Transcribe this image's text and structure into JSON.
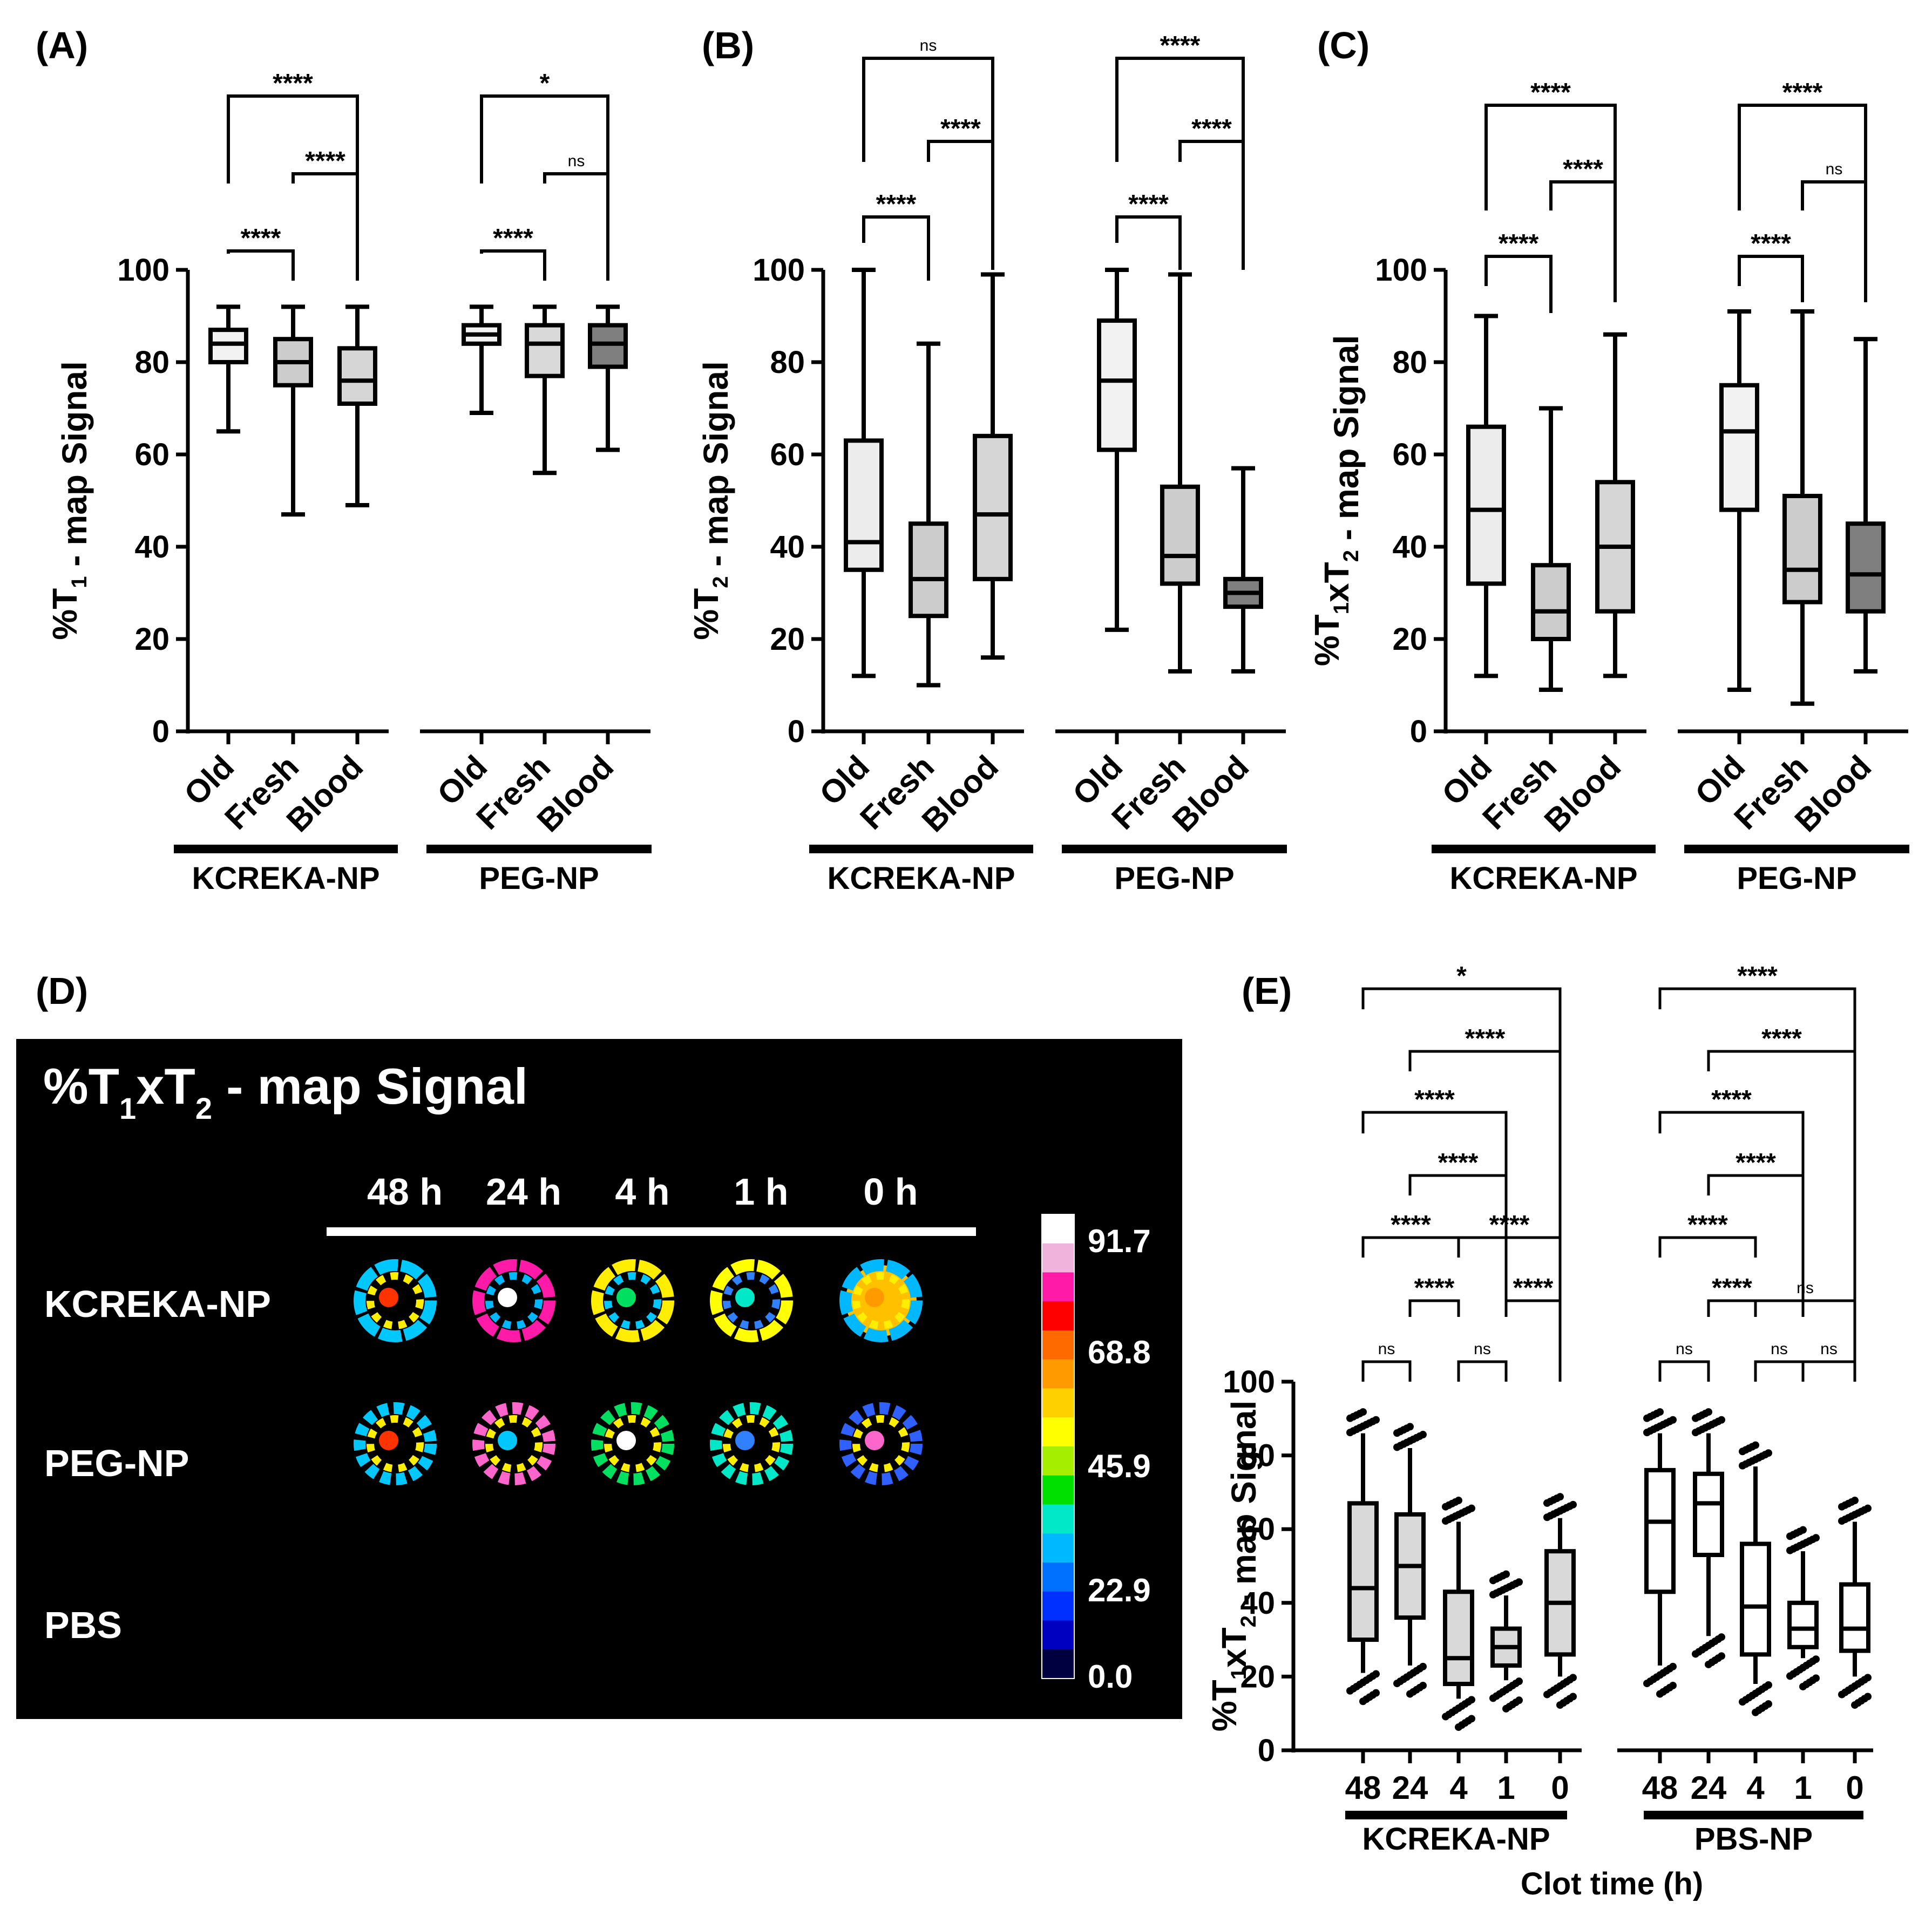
{
  "chart_data": [
    {
      "panel": "(A)",
      "type": "box",
      "ylabel": "%T1 - map Signal",
      "ylim": [
        0,
        100
      ],
      "yticks": [
        0,
        20,
        40,
        60,
        80,
        100
      ],
      "groups": [
        "KCREKA-NP",
        "PEG-NP"
      ],
      "categories": [
        "Old",
        "Fresh",
        "Blood"
      ],
      "boxes": [
        {
          "group": "KCREKA-NP",
          "category": "Old",
          "min": 65,
          "q1": 80,
          "median": 84,
          "q3": 87,
          "max": 92,
          "fill": "#f2f2f2"
        },
        {
          "group": "KCREKA-NP",
          "category": "Fresh",
          "min": 47,
          "q1": 75,
          "median": 80,
          "q3": 85,
          "max": 92,
          "fill": "#cccccc"
        },
        {
          "group": "KCREKA-NP",
          "category": "Blood",
          "min": 49,
          "q1": 71,
          "median": 76,
          "q3": 83,
          "max": 92,
          "fill": "#d6d6d6"
        },
        {
          "group": "PEG-NP",
          "category": "Old",
          "min": 69,
          "q1": 84,
          "median": 86,
          "q3": 88,
          "max": 92,
          "fill": "#f2f2f2"
        },
        {
          "group": "PEG-NP",
          "category": "Fresh",
          "min": 56,
          "q1": 77,
          "median": 84,
          "q3": 88,
          "max": 92,
          "fill": "#d9d9d9"
        },
        {
          "group": "PEG-NP",
          "category": "Blood",
          "min": 61,
          "q1": 79,
          "median": 84,
          "q3": 88,
          "max": 92,
          "fill": "#7f7f7f"
        }
      ],
      "significance": [
        {
          "group": "KCREKA-NP",
          "from": "Old",
          "to": "Fresh",
          "label": "****"
        },
        {
          "group": "KCREKA-NP",
          "from": "Fresh",
          "to": "Blood",
          "label": "****"
        },
        {
          "group": "KCREKA-NP",
          "from": "Old",
          "to": "Blood",
          "label": "****"
        },
        {
          "group": "PEG-NP",
          "from": "Old",
          "to": "Fresh",
          "label": "****"
        },
        {
          "group": "PEG-NP",
          "from": "Fresh",
          "to": "Blood",
          "label": "ns"
        },
        {
          "group": "PEG-NP",
          "from": "Old",
          "to": "Blood",
          "label": "*"
        }
      ]
    },
    {
      "panel": "(B)",
      "type": "box",
      "ylabel": "%T2 - map Signal",
      "ylim": [
        0,
        100
      ],
      "yticks": [
        0,
        20,
        40,
        60,
        80,
        100
      ],
      "groups": [
        "KCREKA-NP",
        "PEG-NP"
      ],
      "categories": [
        "Old",
        "Fresh",
        "Blood"
      ],
      "boxes": [
        {
          "group": "KCREKA-NP",
          "category": "Old",
          "min": 12,
          "q1": 35,
          "median": 41,
          "q3": 63,
          "max": 100,
          "fill": "#ececec"
        },
        {
          "group": "KCREKA-NP",
          "category": "Fresh",
          "min": 10,
          "q1": 25,
          "median": 33,
          "q3": 45,
          "max": 84,
          "fill": "#cccccc"
        },
        {
          "group": "KCREKA-NP",
          "category": "Blood",
          "min": 16,
          "q1": 33,
          "median": 47,
          "q3": 64,
          "max": 99,
          "fill": "#d6d6d6"
        },
        {
          "group": "PEG-NP",
          "category": "Old",
          "min": 22,
          "q1": 61,
          "median": 76,
          "q3": 89,
          "max": 100,
          "fill": "#f2f2f2"
        },
        {
          "group": "PEG-NP",
          "category": "Fresh",
          "min": 13,
          "q1": 32,
          "median": 38,
          "q3": 53,
          "max": 99,
          "fill": "#cccccc"
        },
        {
          "group": "PEG-NP",
          "category": "Blood",
          "min": 13,
          "q1": 27,
          "median": 30,
          "q3": 33,
          "max": 57,
          "fill": "#7f7f7f"
        }
      ],
      "significance": [
        {
          "group": "KCREKA-NP",
          "from": "Old",
          "to": "Fresh",
          "label": "****"
        },
        {
          "group": "KCREKA-NP",
          "from": "Fresh",
          "to": "Blood",
          "label": "****"
        },
        {
          "group": "KCREKA-NP",
          "from": "Old",
          "to": "Blood",
          "label": "ns"
        },
        {
          "group": "PEG-NP",
          "from": "Old",
          "to": "Fresh",
          "label": "****"
        },
        {
          "group": "PEG-NP",
          "from": "Fresh",
          "to": "Blood",
          "label": "****"
        },
        {
          "group": "PEG-NP",
          "from": "Old",
          "to": "Blood",
          "label": "****"
        }
      ]
    },
    {
      "panel": "(C)",
      "type": "box",
      "ylabel": "%T1xT2 - map Signal",
      "ylim": [
        0,
        100
      ],
      "yticks": [
        0,
        20,
        40,
        60,
        80,
        100
      ],
      "groups": [
        "KCREKA-NP",
        "PEG-NP"
      ],
      "categories": [
        "Old",
        "Fresh",
        "Blood"
      ],
      "boxes": [
        {
          "group": "KCREKA-NP",
          "category": "Old",
          "min": 12,
          "q1": 32,
          "median": 48,
          "q3": 66,
          "max": 90,
          "fill": "#ececec"
        },
        {
          "group": "KCREKA-NP",
          "category": "Fresh",
          "min": 9,
          "q1": 20,
          "median": 26,
          "q3": 36,
          "max": 70,
          "fill": "#cccccc"
        },
        {
          "group": "KCREKA-NP",
          "category": "Blood",
          "min": 12,
          "q1": 26,
          "median": 40,
          "q3": 54,
          "max": 86,
          "fill": "#d6d6d6"
        },
        {
          "group": "PEG-NP",
          "category": "Old",
          "min": 9,
          "q1": 48,
          "median": 65,
          "q3": 75,
          "max": 91,
          "fill": "#f2f2f2"
        },
        {
          "group": "PEG-NP",
          "category": "Fresh",
          "min": 6,
          "q1": 28,
          "median": 35,
          "q3": 51,
          "max": 91,
          "fill": "#cccccc"
        },
        {
          "group": "PEG-NP",
          "category": "Blood",
          "min": 13,
          "q1": 26,
          "median": 34,
          "q3": 45,
          "max": 85,
          "fill": "#7f7f7f"
        }
      ],
      "significance": [
        {
          "group": "KCREKA-NP",
          "from": "Old",
          "to": "Fresh",
          "label": "****"
        },
        {
          "group": "KCREKA-NP",
          "from": "Fresh",
          "to": "Blood",
          "label": "****"
        },
        {
          "group": "KCREKA-NP",
          "from": "Old",
          "to": "Blood",
          "label": "****"
        },
        {
          "group": "PEG-NP",
          "from": "Old",
          "to": "Fresh",
          "label": "****"
        },
        {
          "group": "PEG-NP",
          "from": "Fresh",
          "to": "Blood",
          "label": "ns"
        },
        {
          "group": "PEG-NP",
          "from": "Old",
          "to": "Blood",
          "label": "****"
        }
      ]
    },
    {
      "panel": "(E)",
      "type": "box",
      "ylabel": "%T1xT2 - map Signal",
      "xlabel": "Clot time (h)",
      "ylim": [
        0,
        100
      ],
      "yticks": [
        0,
        20,
        40,
        60,
        80,
        100
      ],
      "groups": [
        "KCREKA-NP",
        "PBS-NP"
      ],
      "categories": [
        "48",
        "24",
        "4",
        "1",
        "0"
      ],
      "boxes": [
        {
          "group": "KCREKA-NP",
          "category": "48",
          "min": 21,
          "q1": 30,
          "median": 44,
          "q3": 67,
          "max": 86,
          "fill": "#d9d9d9"
        },
        {
          "group": "KCREKA-NP",
          "category": "24",
          "min": 23,
          "q1": 36,
          "median": 50,
          "q3": 64,
          "max": 82,
          "fill": "#d9d9d9"
        },
        {
          "group": "KCREKA-NP",
          "category": "4",
          "min": 14,
          "q1": 18,
          "median": 25,
          "q3": 43,
          "max": 62,
          "fill": "#d9d9d9"
        },
        {
          "group": "KCREKA-NP",
          "category": "1",
          "min": 19,
          "q1": 23,
          "median": 28,
          "q3": 33,
          "max": 42,
          "fill": "#d9d9d9"
        },
        {
          "group": "KCREKA-NP",
          "category": "0",
          "min": 20,
          "q1": 26,
          "median": 40,
          "q3": 54,
          "max": 63,
          "fill": "#d9d9d9"
        },
        {
          "group": "PBS-NP",
          "category": "48",
          "min": 23,
          "q1": 43,
          "median": 62,
          "q3": 76,
          "max": 86,
          "fill": "#ffffff"
        },
        {
          "group": "PBS-NP",
          "category": "24",
          "min": 31,
          "q1": 53,
          "median": 67,
          "q3": 75,
          "max": 86,
          "fill": "#ffffff"
        },
        {
          "group": "PBS-NP",
          "category": "4",
          "min": 18,
          "q1": 26,
          "median": 39,
          "q3": 56,
          "max": 77,
          "fill": "#ffffff"
        },
        {
          "group": "PBS-NP",
          "category": "1",
          "min": 25,
          "q1": 28,
          "median": 33,
          "q3": 40,
          "max": 54,
          "fill": "#ffffff"
        },
        {
          "group": "PBS-NP",
          "category": "0",
          "min": 20,
          "q1": 27,
          "median": 33,
          "q3": 45,
          "max": 62,
          "fill": "#ffffff"
        }
      ],
      "significance": [
        {
          "group": "KCREKA-NP",
          "from": "48",
          "to": "24",
          "label": "ns"
        },
        {
          "group": "KCREKA-NP",
          "from": "4",
          "to": "1",
          "label": "ns"
        },
        {
          "group": "KCREKA-NP",
          "from": "24",
          "to": "4",
          "label": "****"
        },
        {
          "group": "KCREKA-NP",
          "from": "1",
          "to": "0",
          "label": "****"
        },
        {
          "group": "KCREKA-NP",
          "from": "48",
          "to": "4",
          "label": "****"
        },
        {
          "group": "KCREKA-NP",
          "from": "4",
          "to": "0",
          "label": "****"
        },
        {
          "group": "KCREKA-NP",
          "from": "24",
          "to": "1",
          "label": "****"
        },
        {
          "group": "KCREKA-NP",
          "from": "48",
          "to": "1",
          "label": "****"
        },
        {
          "group": "KCREKA-NP",
          "from": "24",
          "to": "0",
          "label": "****"
        },
        {
          "group": "KCREKA-NP",
          "from": "48",
          "to": "0",
          "label": "*"
        },
        {
          "group": "PBS-NP",
          "from": "48",
          "to": "24",
          "label": "ns"
        },
        {
          "group": "PBS-NP",
          "from": "4",
          "to": "1",
          "label": "ns"
        },
        {
          "group": "PBS-NP",
          "from": "1",
          "to": "0",
          "label": "ns"
        },
        {
          "group": "PBS-NP",
          "from": "24",
          "to": "4",
          "label": "****"
        },
        {
          "group": "PBS-NP",
          "from": "4",
          "to": "0",
          "label": "ns"
        },
        {
          "group": "PBS-NP",
          "from": "48",
          "to": "4",
          "label": "****"
        },
        {
          "group": "PBS-NP",
          "from": "24",
          "to": "1",
          "label": "****"
        },
        {
          "group": "PBS-NP",
          "from": "48",
          "to": "1",
          "label": "****"
        },
        {
          "group": "PBS-NP",
          "from": "24",
          "to": "0",
          "label": "****"
        },
        {
          "group": "PBS-NP",
          "from": "48",
          "to": "0",
          "label": "****"
        }
      ]
    }
  ],
  "panel_d": {
    "label": "(D)",
    "title": "%T1xT2 - map Signal",
    "columns": [
      "48 h",
      "24 h",
      "4 h",
      "1 h",
      "0 h"
    ],
    "rows": [
      "KCREKA-NP",
      "PEG-NP",
      "PBS"
    ],
    "colorbar": {
      "ticks": [
        "91.7",
        "68.8",
        "45.9",
        "22.9",
        "0.0"
      ],
      "colors": [
        "#ffffff",
        "#f0b4dc",
        "#ff1aa8",
        "#ff0000",
        "#ff6a00",
        "#ff9a00",
        "#ffd000",
        "#ffff00",
        "#a6ee00",
        "#00e000",
        "#00e8c8",
        "#00b8ff",
        "#0070ff",
        "#0030ff",
        "#0000c0",
        "#000040"
      ]
    }
  }
}
